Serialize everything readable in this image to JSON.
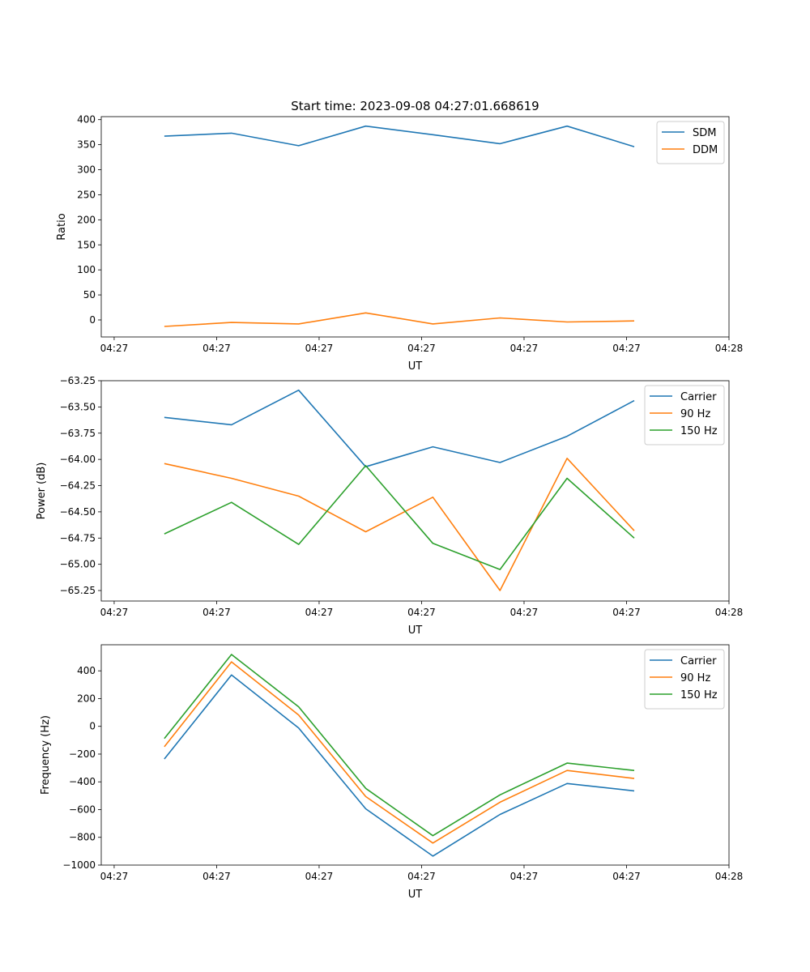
{
  "chart_data": [
    {
      "type": "line",
      "title": "Start time: 2023-09-08 04:27:01.668619",
      "xlabel": "UT",
      "ylabel": "Ratio",
      "x_units": "seconds after 04:27:00",
      "x": [
        4.9,
        11.45,
        18.0,
        24.55,
        31.1,
        37.65,
        44.2,
        50.75
      ],
      "xlim": [
        -1.26,
        60
      ],
      "xticks": [
        0,
        10,
        20,
        30,
        40,
        50,
        60
      ],
      "xtick_labels": [
        "04:27",
        "04:27",
        "04:27",
        "04:27",
        "04:27",
        "04:27",
        "04:28"
      ],
      "ylim": [
        -34,
        406
      ],
      "yticks": [
        0,
        50,
        100,
        150,
        200,
        250,
        300,
        350,
        400
      ],
      "ytick_labels": [
        "0",
        "50",
        "100",
        "150",
        "200",
        "250",
        "300",
        "350",
        "400"
      ],
      "legend": "top-right",
      "series": [
        {
          "name": "SDM",
          "color": "#1f77b4",
          "values": [
            367,
            373,
            348,
            387,
            370,
            352,
            387,
            346
          ]
        },
        {
          "name": "DDM",
          "color": "#ff7f0e",
          "values": [
            -13,
            -5,
            -8,
            14,
            -8,
            4,
            -4,
            -2
          ]
        }
      ]
    },
    {
      "type": "line",
      "title": "",
      "xlabel": "UT",
      "ylabel": "Power (dB)",
      "x": [
        4.9,
        11.45,
        18.0,
        24.55,
        31.1,
        37.65,
        44.2,
        50.75
      ],
      "xlim": [
        -1.26,
        60
      ],
      "xticks": [
        0,
        10,
        20,
        30,
        40,
        50,
        60
      ],
      "xtick_labels": [
        "04:27",
        "04:27",
        "04:27",
        "04:27",
        "04:27",
        "04:27",
        "04:28"
      ],
      "ylim": [
        -65.35,
        -63.25
      ],
      "yticks": [
        -63.25,
        -63.5,
        -63.75,
        -64.0,
        -64.25,
        -64.5,
        -64.75,
        -65.0,
        -65.25
      ],
      "ytick_labels": [
        "−63.25",
        "−63.50",
        "−63.75",
        "−64.00",
        "−64.25",
        "−64.50",
        "−64.75",
        "−65.00",
        "−65.25"
      ],
      "legend": "top-right",
      "series": [
        {
          "name": "Carrier",
          "color": "#1f77b4",
          "values": [
            -63.6,
            -63.67,
            -63.34,
            -64.07,
            -63.88,
            -64.03,
            -63.78,
            -63.44
          ]
        },
        {
          "name": "90 Hz",
          "color": "#ff7f0e",
          "values": [
            -64.04,
            -64.18,
            -64.35,
            -64.69,
            -64.36,
            -65.25,
            -63.99,
            -64.68
          ]
        },
        {
          "name": "150 Hz",
          "color": "#2ca02c",
          "values": [
            -64.71,
            -64.41,
            -64.81,
            -64.06,
            -64.8,
            -65.05,
            -64.18,
            -64.75
          ]
        }
      ]
    },
    {
      "type": "line",
      "title": "",
      "xlabel": "UT",
      "ylabel": "Frequency (Hz)",
      "x": [
        4.9,
        11.45,
        18.0,
        24.55,
        31.1,
        37.65,
        44.2,
        50.75
      ],
      "xlim": [
        -1.26,
        60
      ],
      "xticks": [
        0,
        10,
        20,
        30,
        40,
        50,
        60
      ],
      "xtick_labels": [
        "04:27",
        "04:27",
        "04:27",
        "04:27",
        "04:27",
        "04:27",
        "04:28"
      ],
      "ylim": [
        -1000,
        588
      ],
      "yticks": [
        -1000,
        -800,
        -600,
        -400,
        -200,
        0,
        200,
        400
      ],
      "ytick_labels": [
        "−1000",
        "−800",
        "−600",
        "−400",
        "−200",
        "0",
        "200",
        "400"
      ],
      "legend": "top-right",
      "series": [
        {
          "name": "Carrier",
          "color": "#1f77b4",
          "values": [
            -235,
            370,
            -12,
            -594,
            -935,
            -635,
            -412,
            -465
          ]
        },
        {
          "name": "90 Hz",
          "color": "#ff7f0e",
          "values": [
            -147,
            465,
            82,
            -506,
            -841,
            -547,
            -318,
            -376
          ]
        },
        {
          "name": "150 Hz",
          "color": "#2ca02c",
          "values": [
            -88,
            518,
            141,
            -447,
            -788,
            -494,
            -265,
            -318
          ]
        }
      ]
    }
  ]
}
